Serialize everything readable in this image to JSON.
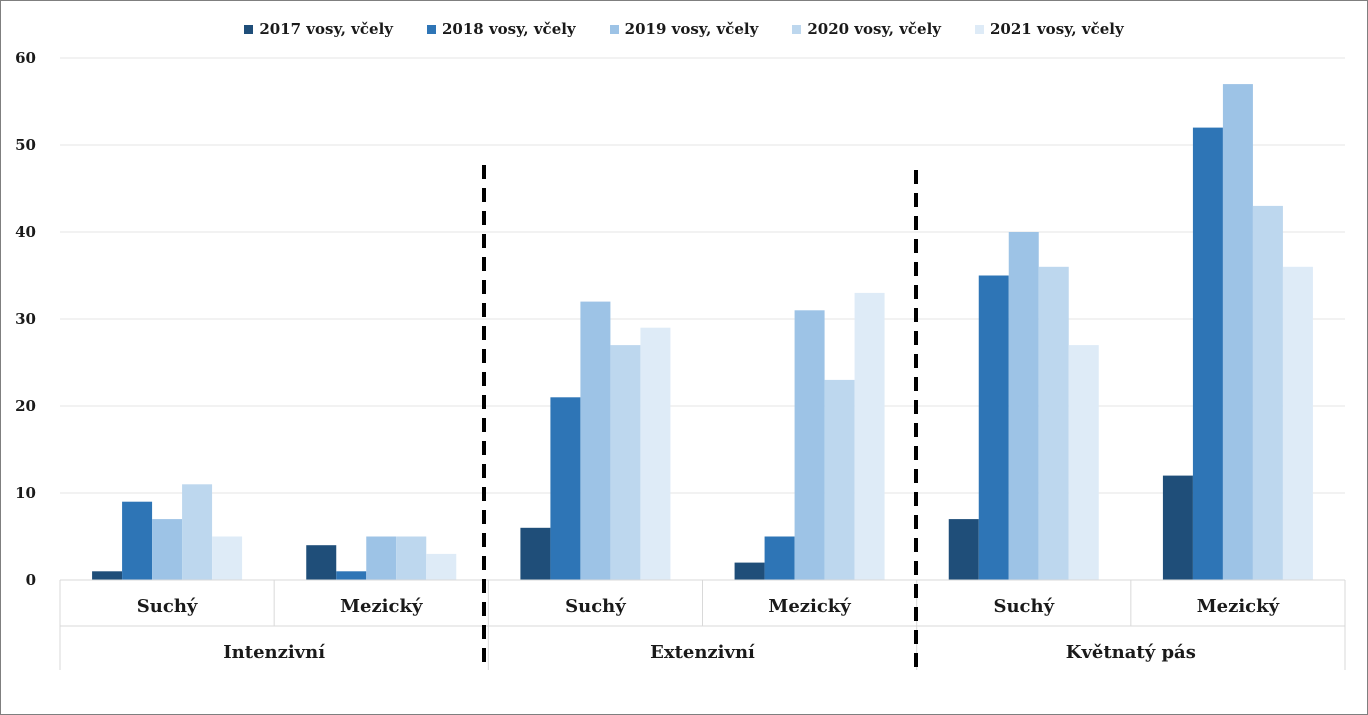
{
  "chart_data": {
    "type": "bar",
    "groups": [
      "Intenzivní",
      "Extenzivní",
      "Květnatý pás"
    ],
    "subcategories": [
      "Suchý",
      "Mezický"
    ],
    "categories": [
      "Suchý",
      "Mezický",
      "Suchý",
      "Mezický",
      "Suchý",
      "Mezický"
    ],
    "series": [
      {
        "name": "2017 vosy, včely",
        "color": "#1f4e79",
        "values": [
          1,
          4,
          6,
          2,
          7,
          12
        ]
      },
      {
        "name": "2018 vosy, včely",
        "color": "#2e75b6",
        "values": [
          9,
          1,
          21,
          5,
          35,
          52
        ]
      },
      {
        "name": "2019 vosy, včely",
        "color": "#9dc3e6",
        "values": [
          7,
          5,
          32,
          31,
          40,
          57
        ]
      },
      {
        "name": "2020 vosy, včely",
        "color": "#bdd7ee",
        "values": [
          11,
          5,
          27,
          23,
          36,
          43
        ]
      },
      {
        "name": "2021 vosy, včely",
        "color": "#deebf7",
        "values": [
          5,
          3,
          29,
          33,
          27,
          36
        ]
      }
    ],
    "yticks": [
      0,
      10,
      20,
      30,
      40,
      50,
      60
    ],
    "ylim": [
      0,
      60
    ],
    "grid": true,
    "legend_position": "top",
    "group_separator": "dashed"
  }
}
